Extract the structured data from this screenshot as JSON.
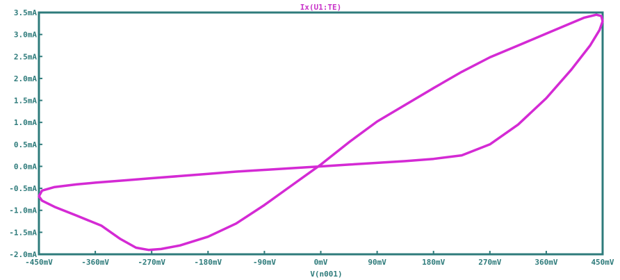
{
  "chart_data": {
    "type": "line",
    "title": "Ix(U1:TE)",
    "xlabel": "V(n001)",
    "ylabel": "",
    "xlim": [
      -450,
      450
    ],
    "ylim": [
      -2.0,
      3.5
    ],
    "x_unit": "mV",
    "y_unit": "mA",
    "x_tick_labels": [
      "-450mV",
      "-360mV",
      "-270mV",
      "-180mV",
      "-90mV",
      "0mV",
      "90mV",
      "180mV",
      "270mV",
      "360mV",
      "450mV"
    ],
    "x_tick_values": [
      -450,
      -360,
      -270,
      -180,
      -90,
      0,
      90,
      180,
      270,
      360,
      450
    ],
    "y_tick_labels": [
      "3.5mA",
      "3.0mA",
      "2.5mA",
      "2.0mA",
      "1.5mA",
      "1.0mA",
      "0.5mA",
      "0.0mA",
      "-0.5mA",
      "-1.0mA",
      "-1.5mA",
      "-2.0mA"
    ],
    "y_tick_values": [
      3.5,
      3.0,
      2.5,
      2.0,
      1.5,
      1.0,
      0.5,
      0.0,
      -0.5,
      -1.0,
      -1.5,
      -2.0
    ],
    "grid": false,
    "series": [
      {
        "color": "#d42ad4",
        "x": [
          0,
          45,
          90,
          135,
          180,
          225,
          270,
          315,
          360,
          400,
          430,
          445,
          450,
          448,
          440,
          420,
          390,
          360,
          315,
          270,
          225,
          180,
          135,
          90,
          45,
          0,
          -45,
          -90,
          -135,
          -180,
          -225,
          -255,
          -275,
          -295,
          -320,
          -350,
          -390,
          -425,
          -445,
          -450,
          -445,
          -425,
          -390,
          -360,
          -315,
          -270,
          -225,
          -180,
          -135,
          -90,
          -45,
          0
        ],
        "y": [
          0,
          0.04,
          0.08,
          0.12,
          0.17,
          0.25,
          0.5,
          0.95,
          1.55,
          2.2,
          2.75,
          3.1,
          3.3,
          3.42,
          3.45,
          3.38,
          3.2,
          3.02,
          2.75,
          2.48,
          2.15,
          1.78,
          1.4,
          1.02,
          0.55,
          0.04,
          -0.42,
          -0.88,
          -1.3,
          -1.6,
          -1.8,
          -1.88,
          -1.9,
          -1.85,
          -1.65,
          -1.35,
          -1.12,
          -0.92,
          -0.78,
          -0.68,
          -0.55,
          -0.47,
          -0.41,
          -0.37,
          -0.32,
          -0.27,
          -0.22,
          -0.17,
          -0.12,
          -0.08,
          -0.04,
          0
        ]
      }
    ]
  }
}
